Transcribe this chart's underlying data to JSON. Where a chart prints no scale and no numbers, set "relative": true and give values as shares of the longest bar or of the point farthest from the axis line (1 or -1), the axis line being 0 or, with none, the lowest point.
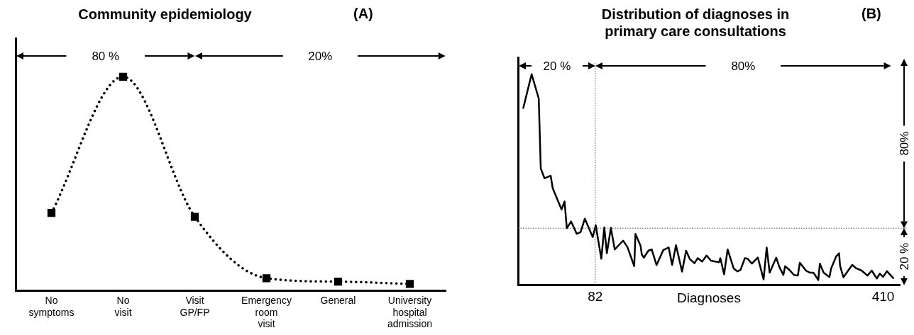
{
  "chart_data": [
    {
      "type": "line",
      "title": "Community epidemiology",
      "subtitle": "(A)",
      "relative": true,
      "categories": [
        "No symptoms",
        "No visit",
        "Visit GP/FP",
        "Emergency room visit",
        "General",
        "University hospital admission"
      ],
      "tick_labels": "x",
      "annotations": [
        "80 %",
        "20%"
      ],
      "series": [
        {
          "color": "#000000",
          "line_style": "dotted",
          "marker": "square",
          "values": [
            0.364,
            1,
            0.346,
            0.059,
            0.043,
            0.032
          ]
        }
      ]
    },
    {
      "type": "line",
      "title": "Distribution of diagnoses in primary care consultations",
      "subtitle": "(B)",
      "xlabel": "Diagnoses",
      "relative": true,
      "xlim": [
        -6,
        429
      ],
      "xticks": [
        82,
        410
      ],
      "tick_labels": "x",
      "annotations": [
        "20 %",
        "80%",
        "80%",
        "20 %"
      ],
      "ref_lines": [
        {
          "axis": "x",
          "value": 82,
          "line_style": "dotted",
          "color": "#555555"
        },
        {
          "axis": "y",
          "value": 0.269,
          "line_style": "dotted",
          "color": "#555555"
        }
      ],
      "series": [
        {
          "color": "#000000",
          "x": [
            0,
            9.5,
            17.6,
            19.9,
            24.2,
            31.2,
            33.5,
            43.6,
            47.0,
            49.6,
            54.5,
            60.9,
            65.2,
            70.1,
            79.1,
            82.5,
            88.9,
            92.3,
            95.2,
            99.8,
            104.2,
            113.7,
            118.6,
            126.4,
            127.8,
            133.6,
            135.0,
            137.3,
            142.5,
            146.3,
            151.8,
            159.5,
            165.6,
            169.6,
            174.0,
            180.9,
            185.5,
            189.8,
            195.0,
            198.8,
            203.7,
            208.9,
            213.8,
            223.0,
            224.5,
            228.8,
            232.8,
            239.8,
            244.1,
            247.5,
            252.5,
            255.6,
            260.5,
            267.2,
            273.8,
            277.3,
            280.7,
            288.2,
            291.7,
            296.3,
            298.3,
            303.2,
            308.4,
            312.8,
            315.1,
            322.0,
            326.3,
            330.6,
            336.1,
            337.9,
            342.2,
            348.8,
            350.8,
            356.6,
            359.8,
            360.9,
            364.7,
            374.8,
            379.1,
            385.5,
            392.1,
            397.0,
            402.8,
            406.2,
            410.0,
            414.3,
            421.5
          ],
          "values": [
            0.84,
            1,
            0.885,
            0.553,
            0.506,
            0.518,
            0.459,
            0.358,
            0.396,
            0.269,
            0.301,
            0.242,
            0.25,
            0.314,
            0.227,
            0.283,
            0.124,
            0.273,
            0.15,
            0.271,
            0.168,
            0.21,
            0.18,
            0.089,
            0.242,
            0.186,
            0.145,
            0.129,
            0.162,
            0.168,
            0.094,
            0.165,
            0.178,
            0.095,
            0.188,
            0.063,
            0.162,
            0.122,
            0.103,
            0.127,
            0.111,
            0.139,
            0.115,
            0.107,
            0.127,
            0.05,
            0.168,
            0.077,
            0.064,
            0.071,
            0.127,
            0.124,
            0.101,
            0.13,
            0.026,
            0.177,
            0.058,
            0.129,
            0.085,
            0.047,
            0.088,
            0.071,
            0.047,
            0.044,
            0.105,
            0.068,
            0.058,
            0.058,
            0.023,
            0.101,
            0.058,
            0.037,
            0.079,
            0.136,
            0.15,
            0.091,
            0.036,
            0.095,
            0.079,
            0.068,
            0.044,
            0.068,
            0.03,
            0.053,
            0.038,
            0.065,
            0.032
          ]
        }
      ]
    }
  ]
}
